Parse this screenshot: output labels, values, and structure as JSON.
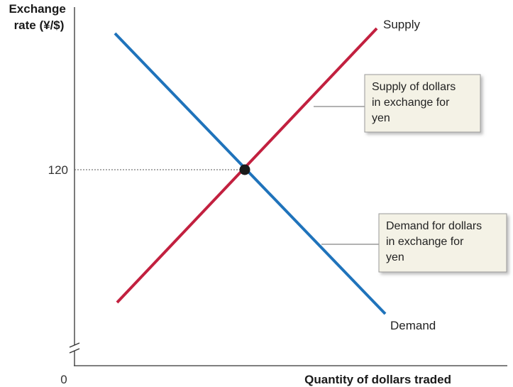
{
  "chart_data": {
    "type": "line",
    "ylabel": [
      "Exchange",
      "rate (¥/$)"
    ],
    "xlabel": "Quantity of dollars traded",
    "origin_label": "0",
    "y_ticks": [
      {
        "value": 120,
        "label": "120"
      }
    ],
    "equilibrium": {
      "y": 120
    },
    "series": [
      {
        "name": "Supply",
        "color": "#c2203f",
        "slope": "upward",
        "annotation": [
          "Supply of dollars",
          "in exchange for",
          "yen"
        ]
      },
      {
        "name": "Demand",
        "color": "#1f73bb",
        "slope": "downward",
        "annotation": [
          "Demand for dollars",
          "in exchange for",
          "yen"
        ]
      }
    ],
    "axis_break": true,
    "grid": false,
    "legend": "none"
  }
}
